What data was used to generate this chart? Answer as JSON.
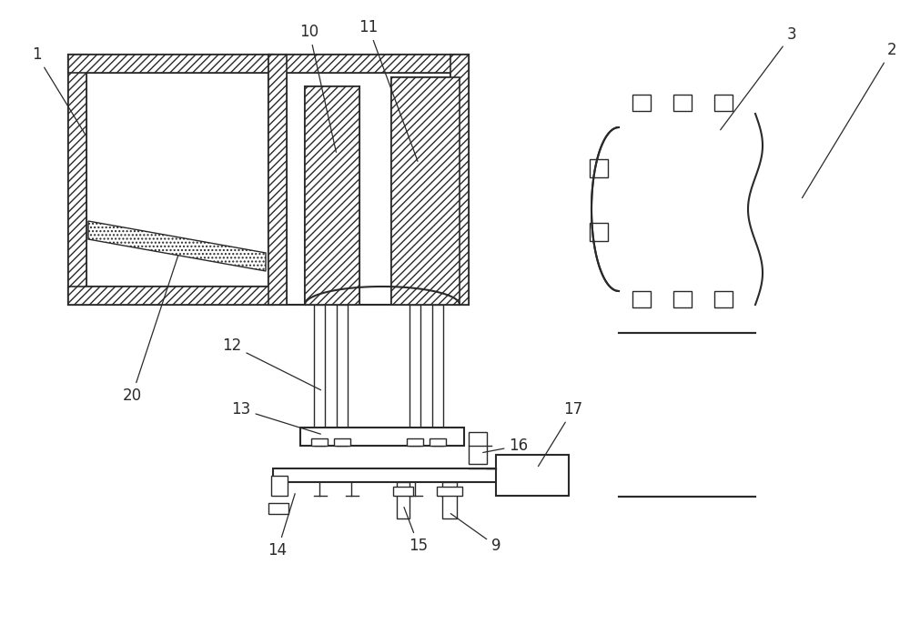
{
  "bg_color": "#ffffff",
  "lc": "#2a2a2a",
  "lw": 1.5,
  "lw_thin": 1.0,
  "fs": 12,
  "fig_w": 10.0,
  "fig_h": 6.86
}
